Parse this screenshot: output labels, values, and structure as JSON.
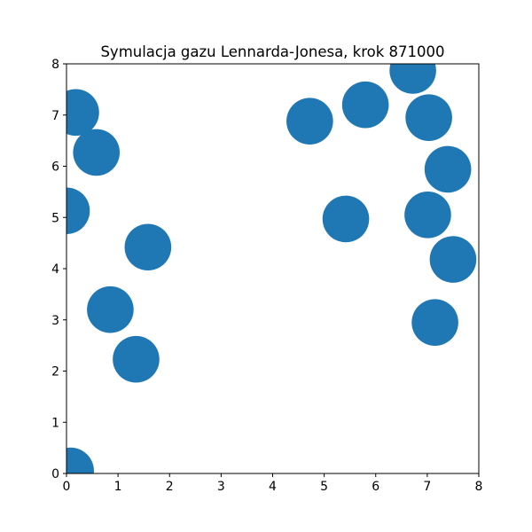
{
  "chart_data": {
    "type": "scatter",
    "title": "Symulacja gazu Lennarda-Jonesa, krok 871000",
    "xlabel": "",
    "ylabel": "",
    "xlim": [
      0,
      8
    ],
    "ylim": [
      0,
      8
    ],
    "xticks": [
      "0",
      "1",
      "2",
      "3",
      "4",
      "5",
      "6",
      "7",
      "8"
    ],
    "yticks": [
      "0",
      "1",
      "2",
      "3",
      "4",
      "5",
      "6",
      "7",
      "8"
    ],
    "grid": false,
    "marker_color": "#1f77b4",
    "marker_radius_data": 0.5,
    "points": [
      {
        "x": 0.0,
        "y": 5.13
      },
      {
        "x": 0.18,
        "y": 7.05
      },
      {
        "x": 0.58,
        "y": 6.27
      },
      {
        "x": 0.85,
        "y": 3.2
      },
      {
        "x": 1.35,
        "y": 2.23
      },
      {
        "x": 1.58,
        "y": 4.42
      },
      {
        "x": 0.08,
        "y": 0.05
      },
      {
        "x": 4.72,
        "y": 6.88
      },
      {
        "x": 5.8,
        "y": 7.2
      },
      {
        "x": 6.72,
        "y": 7.87
      },
      {
        "x": 7.03,
        "y": 6.95
      },
      {
        "x": 7.4,
        "y": 5.94
      },
      {
        "x": 5.42,
        "y": 4.97
      },
      {
        "x": 7.01,
        "y": 5.05
      },
      {
        "x": 7.5,
        "y": 4.18
      },
      {
        "x": 7.15,
        "y": 2.95
      }
    ]
  }
}
